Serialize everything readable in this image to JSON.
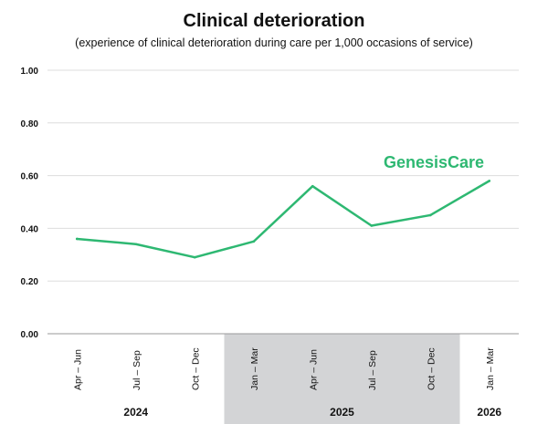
{
  "chart_data": {
    "type": "line",
    "title": "Clinical deterioration",
    "subtitle": "(experience of clinical deterioration during care per 1,000 occasions of service)",
    "categories": [
      "Apr – Jun",
      "Jul – Sep",
      "Oct – Dec",
      "Jan – Mar",
      "Apr – Jun",
      "Jul – Sep",
      "Oct – Dec",
      "Jan – Mar"
    ],
    "series": [
      {
        "values": [
          0.36,
          0.34,
          0.29,
          0.35,
          0.56,
          0.41,
          0.45,
          0.58
        ]
      }
    ],
    "year_groups": [
      {
        "label": "2024",
        "start": 0,
        "end": 2,
        "shaded": false
      },
      {
        "label": "2025",
        "start": 3,
        "end": 6,
        "shaded": true
      },
      {
        "label": "2026",
        "start": 7,
        "end": 7,
        "shaded": false
      }
    ],
    "yticks": [
      "0.00",
      "0.20",
      "0.40",
      "0.60",
      "0.80",
      "1.00"
    ],
    "ylim": [
      0,
      1
    ],
    "grid": true,
    "annotation": "GenesisCare",
    "colors": {
      "line": "#2eb872",
      "grid": "#dddddd",
      "band": "#d3d4d6",
      "axis": "#999999",
      "text": "#111111"
    }
  }
}
